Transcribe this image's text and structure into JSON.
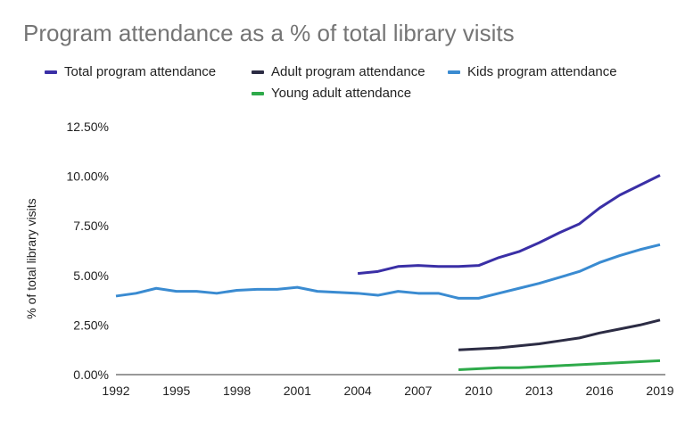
{
  "chart_data": {
    "type": "line",
    "title": "Program attendance as a % of total library visits",
    "xlabel": "",
    "ylabel": "% of total library visits",
    "xlim": [
      1992,
      2019
    ],
    "ylim": [
      0,
      12.5
    ],
    "x_ticks": [
      "1992",
      "1995",
      "1998",
      "2001",
      "2004",
      "2007",
      "2010",
      "2013",
      "2016",
      "2019"
    ],
    "y_ticks": [
      "0.00%",
      "2.50%",
      "5.00%",
      "7.50%",
      "10.00%",
      "12.50%"
    ],
    "grid": false,
    "legend_placement": "top",
    "series": [
      {
        "name": "Total program attendance",
        "color": "#3a2fa6",
        "x": [
          2004,
          2005,
          2006,
          2007,
          2008,
          2009,
          2010,
          2011,
          2012,
          2013,
          2014,
          2015,
          2016,
          2017,
          2018,
          2019
        ],
        "values": [
          5.1,
          5.2,
          5.45,
          5.5,
          5.45,
          5.45,
          5.5,
          5.9,
          6.2,
          6.65,
          7.15,
          7.6,
          8.4,
          9.05,
          9.55,
          10.05
        ]
      },
      {
        "name": "Adult program attendance",
        "color": "#2c2c44",
        "x": [
          2009,
          2010,
          2011,
          2012,
          2013,
          2014,
          2015,
          2016,
          2017,
          2018,
          2019
        ],
        "values": [
          1.25,
          1.3,
          1.35,
          1.45,
          1.55,
          1.7,
          1.85,
          2.1,
          2.3,
          2.5,
          2.75
        ]
      },
      {
        "name": "Kids program attendance",
        "color": "#3a8bd1",
        "x": [
          1992,
          1993,
          1994,
          1995,
          1996,
          1997,
          1998,
          1999,
          2000,
          2001,
          2002,
          2003,
          2004,
          2005,
          2006,
          2007,
          2008,
          2009,
          2010,
          2011,
          2012,
          2013,
          2014,
          2015,
          2016,
          2017,
          2018,
          2019
        ],
        "values": [
          3.96,
          4.1,
          4.35,
          4.2,
          4.2,
          4.1,
          4.25,
          4.3,
          4.3,
          4.4,
          4.2,
          4.15,
          4.1,
          4.0,
          4.2,
          4.1,
          4.1,
          3.85,
          3.85,
          4.1,
          4.35,
          4.6,
          4.9,
          5.2,
          5.65,
          6.0,
          6.3,
          6.55
        ]
      },
      {
        "name": "Young adult attendance",
        "color": "#2eaa4a",
        "x": [
          2009,
          2010,
          2011,
          2012,
          2013,
          2014,
          2015,
          2016,
          2017,
          2018,
          2019
        ],
        "values": [
          0.25,
          0.3,
          0.35,
          0.35,
          0.4,
          0.45,
          0.5,
          0.55,
          0.6,
          0.65,
          0.7
        ]
      }
    ]
  }
}
